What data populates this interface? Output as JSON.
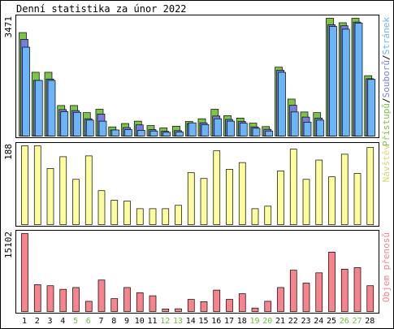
{
  "title": "Denní statistika za únor 2022",
  "colors": {
    "pristupy": "#7cc444",
    "soubory": "#7b7ce0",
    "stranky": "#6ab4f7",
    "navstevy": "#fdfd9e",
    "objem": "#f7838d",
    "weekend_label": "#6cbf3c",
    "weekday_label": "#000000",
    "panel_bg": "#ffffff",
    "panel_border": "#000000",
    "outer_bg": "#ffffff"
  },
  "chart_data": [
    {
      "type": "bar",
      "name": "hits-files-pages",
      "ymax_label": "3471",
      "ymax": 3471,
      "legend_label": "Stránek/Souborů/Přístupů",
      "legend_parts": [
        "Stránek",
        "/",
        "Souborů",
        "/",
        "Přístupů"
      ],
      "legend_colors": [
        "#6ab4f7",
        "#000000",
        "#7b7ce0",
        "#000000",
        "#7cc444"
      ],
      "categories": [
        "1",
        "2",
        "3",
        "4",
        "5",
        "6",
        "7",
        "8",
        "9",
        "10",
        "11",
        "12",
        "13",
        "14",
        "15",
        "16",
        "17",
        "18",
        "19",
        "20",
        "21",
        "22",
        "23",
        "24",
        "25",
        "26",
        "27",
        "28"
      ],
      "weekend": [
        false,
        false,
        false,
        false,
        true,
        true,
        false,
        false,
        false,
        false,
        false,
        true,
        true,
        false,
        false,
        false,
        false,
        false,
        true,
        true,
        false,
        false,
        false,
        false,
        false,
        true,
        true,
        false
      ],
      "series": [
        {
          "name": "Přístupů",
          "values": [
            3050,
            1880,
            1880,
            900,
            900,
            690,
            790,
            270,
            370,
            440,
            310,
            240,
            290,
            430,
            510,
            790,
            600,
            530,
            380,
            280,
            2030,
            1090,
            710,
            690,
            3471,
            3340,
            3471,
            1780
          ]
        },
        {
          "name": "Souborů",
          "values": [
            2850,
            1640,
            1680,
            780,
            750,
            510,
            650,
            180,
            250,
            330,
            190,
            140,
            160,
            370,
            390,
            590,
            490,
            430,
            270,
            200,
            1940,
            910,
            560,
            530,
            3280,
            3250,
            3360,
            1690
          ]
        },
        {
          "name": "Stránek",
          "values": [
            2620,
            1640,
            1640,
            720,
            700,
            470,
            440,
            180,
            190,
            170,
            150,
            110,
            120,
            390,
            340,
            510,
            440,
            380,
            230,
            150,
            1880,
            710,
            410,
            470,
            3230,
            3150,
            3330,
            1670
          ]
        }
      ]
    },
    {
      "type": "bar",
      "name": "visits",
      "ymax_label": "188",
      "ymax": 188,
      "legend_label": "Návštěv",
      "categories": [
        "1",
        "2",
        "3",
        "4",
        "5",
        "6",
        "7",
        "8",
        "9",
        "10",
        "11",
        "12",
        "13",
        "14",
        "15",
        "16",
        "17",
        "18",
        "19",
        "20",
        "21",
        "22",
        "23",
        "24",
        "25",
        "26",
        "27",
        "28"
      ],
      "values": [
        188,
        188,
        134,
        162,
        108,
        164,
        81,
        58,
        56,
        38,
        38,
        38,
        46,
        124,
        110,
        176,
        132,
        148,
        38,
        44,
        128,
        180,
        108,
        154,
        114,
        168,
        122,
        184
      ]
    },
    {
      "type": "bar",
      "name": "volume",
      "ymax_label": "15102",
      "ymax": 15102,
      "legend_label": "Objem přenosů",
      "categories": [
        "1",
        "2",
        "3",
        "4",
        "5",
        "6",
        "7",
        "8",
        "9",
        "10",
        "11",
        "12",
        "13",
        "14",
        "15",
        "16",
        "17",
        "18",
        "19",
        "20",
        "21",
        "22",
        "23",
        "24",
        "25",
        "26",
        "27",
        "28"
      ],
      "values": [
        15102,
        5200,
        5000,
        4300,
        4650,
        1980,
        6100,
        2500,
        4650,
        3650,
        3050,
        500,
        530,
        2350,
        1900,
        4150,
        2350,
        3450,
        680,
        1980,
        4650,
        8000,
        5500,
        7500,
        11500,
        8200,
        8500,
        5000
      ]
    }
  ]
}
